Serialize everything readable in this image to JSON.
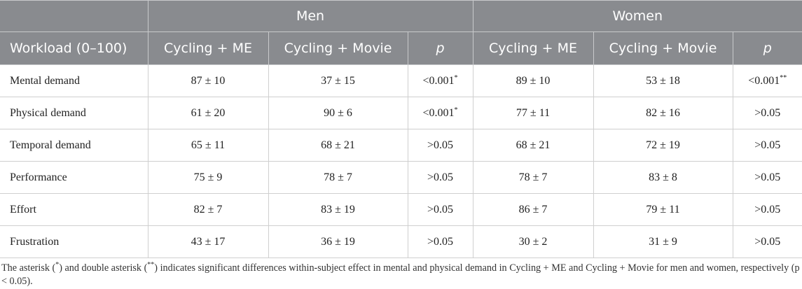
{
  "table": {
    "group_headers": [
      "Men",
      "Women"
    ],
    "columns": [
      "Workload (0–100)",
      "Cycling + ME",
      "Cycling + Movie",
      "p",
      "Cycling + ME",
      "Cycling + Movie",
      "p"
    ],
    "rows": [
      {
        "label": "Mental demand",
        "men_me": "87 ± 10",
        "men_movie": "37 ± 15",
        "men_p": "<0.001",
        "men_p_sup": "*",
        "women_me": "89 ± 10",
        "women_movie": "53 ± 18",
        "women_p": "<0.001",
        "women_p_sup": "**"
      },
      {
        "label": "Physical demand",
        "men_me": "61 ± 20",
        "men_movie": "90 ± 6",
        "men_p": "<0.001",
        "men_p_sup": "*",
        "women_me": "77 ± 11",
        "women_movie": "82 ± 16",
        "women_p": ">0.05",
        "women_p_sup": ""
      },
      {
        "label": "Temporal demand",
        "men_me": "65 ± 11",
        "men_movie": "68 ± 21",
        "men_p": ">0.05",
        "men_p_sup": "",
        "women_me": "68 ± 21",
        "women_movie": "72 ± 19",
        "women_p": ">0.05",
        "women_p_sup": ""
      },
      {
        "label": "Performance",
        "men_me": "75 ± 9",
        "men_movie": "78 ± 7",
        "men_p": ">0.05",
        "men_p_sup": "",
        "women_me": "78 ± 7",
        "women_movie": "83 ± 8",
        "women_p": ">0.05",
        "women_p_sup": ""
      },
      {
        "label": "Effort",
        "men_me": "82 ± 7",
        "men_movie": "83 ± 19",
        "men_p": ">0.05",
        "men_p_sup": "",
        "women_me": "86 ± 7",
        "women_movie": "79 ± 11",
        "women_p": ">0.05",
        "women_p_sup": ""
      },
      {
        "label": "Frustration",
        "men_me": "43 ± 17",
        "men_movie": "36 ± 19",
        "men_p": ">0.05",
        "men_p_sup": "",
        "women_me": "30 ± 2",
        "women_movie": "31 ± 9",
        "women_p": ">0.05",
        "women_p_sup": ""
      }
    ]
  },
  "footnote": {
    "t1": "The asterisk (",
    "s1": "*",
    "t2": ") and double asterisk (",
    "s2": "**",
    "t3": ") indicates significant differences within-subject effect in mental and physical demand in Cycling + ME and Cycling + Movie for men and women, respectively (p < 0.05)."
  },
  "colors": {
    "header_bg": "#898b8f",
    "header_text": "#ffffff",
    "grid": "#cfcfcf"
  }
}
